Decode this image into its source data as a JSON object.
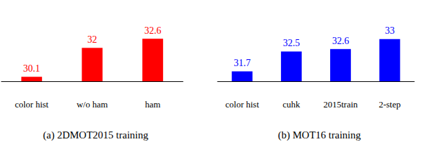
{
  "chart_data": [
    {
      "type": "bar",
      "title": "(a) 2DMOT2015 training",
      "categories": [
        "color hist",
        "w/o ham",
        "ham"
      ],
      "values": [
        30.1,
        32,
        32.6
      ],
      "color": "#ff0000",
      "ylim": [
        29.8,
        34.7
      ],
      "data_labels": true,
      "tick_labels": "x",
      "grid": false
    },
    {
      "type": "bar",
      "title": "(b) MOT16 training",
      "categories": [
        "color hist",
        "cuhk",
        "2015train",
        "2-step"
      ],
      "values": [
        31.7,
        32.5,
        32.6,
        33
      ],
      "color": "#0000ff",
      "ylim": [
        31.3,
        34.3
      ],
      "data_labels": true,
      "tick_labels": "x",
      "grid": false
    }
  ]
}
